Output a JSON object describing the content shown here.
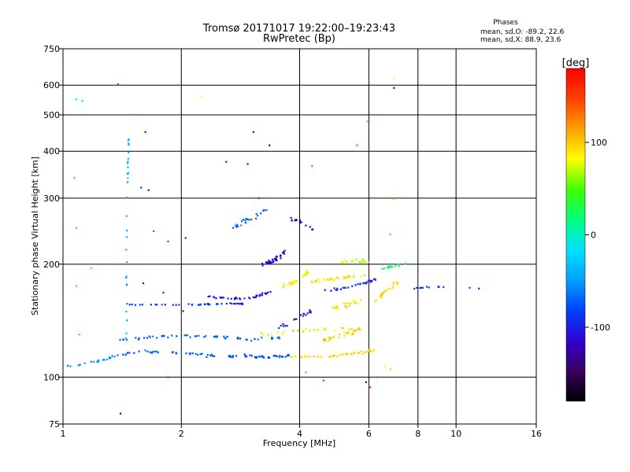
{
  "header": {
    "title_line1": "Tromsø 20171017 19:22:00–19:23:43",
    "title_line2": "RwPretec (Bp)"
  },
  "stats": {
    "heading": "Phases",
    "line_o": "mean, sd,O: -89.2, 22.6",
    "line_x": "mean, sd,X:  88.9, 23.6"
  },
  "colorbar": {
    "label": "[deg]",
    "range": [
      -180,
      180
    ],
    "ticks": [
      {
        "value": 100,
        "label": "100"
      },
      {
        "value": 0,
        "label": "0"
      },
      {
        "value": -100,
        "label": "-100"
      }
    ],
    "stops": [
      "#000000",
      "#3a0060",
      "#3000d0",
      "#0040ff",
      "#00a0ff",
      "#00e0ff",
      "#00ff80",
      "#40ff00",
      "#ffff00",
      "#ffa000",
      "#ff4000",
      "#ff0000"
    ]
  },
  "chart_data": {
    "type": "scatter",
    "title": "Tromsø 20171017 19:22:00–19:23:43",
    "subtitle": "RwPretec (Bp)",
    "xlabel": "Frequency [MHz]",
    "ylabel": "Stationary phase Virtual Height [km]",
    "xscale": "log",
    "yscale": "log",
    "xlim": [
      1,
      16
    ],
    "ylim": [
      75,
      750
    ],
    "grid": true,
    "xticks": [
      {
        "value": 1,
        "label": "1"
      },
      {
        "value": 2,
        "label": "2"
      },
      {
        "value": 4,
        "label": "4"
      },
      {
        "value": 6,
        "label": "6"
      },
      {
        "value": 8,
        "label": "8"
      },
      {
        "value": 10,
        "label": "10"
      },
      {
        "value": 16,
        "label": "16"
      }
    ],
    "yticks": [
      {
        "value": 75,
        "label": "75"
      },
      {
        "value": 100,
        "label": "100"
      },
      {
        "value": 200,
        "label": "200"
      },
      {
        "value": 300,
        "label": "300"
      },
      {
        "value": 400,
        "label": "400"
      },
      {
        "value": 500,
        "label": "500"
      },
      {
        "value": 600,
        "label": "600"
      },
      {
        "value": 750,
        "label": "750"
      }
    ],
    "grid_x": [
      1,
      2,
      4,
      6,
      8,
      10,
      16
    ],
    "grid_y": [
      100,
      200,
      300,
      400,
      500,
      600
    ],
    "traces": [
      {
        "x": [
          1.0,
          1.1,
          1.2,
          1.3,
          1.38
        ],
        "y": [
          106,
          108,
          110,
          112,
          114
        ],
        "phase": -55,
        "n": 22,
        "jx": 0.012,
        "jy": 0.012
      },
      {
        "x": [
          1.38,
          1.6,
          2.0,
          2.4,
          2.9,
          3.3,
          3.8
        ],
        "y": [
          115,
          117,
          116,
          114,
          114,
          113,
          114
        ],
        "phase": -75,
        "n": 80,
        "jx": 0.012,
        "jy": 0.012
      },
      {
        "x": [
          3.8,
          4.4,
          5.0,
          5.6,
          6.2
        ],
        "y": [
          114,
          113,
          114,
          116,
          118
        ],
        "phase": 95,
        "n": 45,
        "jx": 0.012,
        "jy": 0.012
      },
      {
        "x": [
          1.4,
          1.7,
          2.0,
          2.5,
          3.0,
          3.6
        ],
        "y": [
          126,
          128,
          129,
          128,
          126,
          128
        ],
        "phase": -70,
        "n": 60,
        "jx": 0.01,
        "jy": 0.012
      },
      {
        "x": [
          3.2,
          3.8,
          4.4,
          5.0,
          5.8
        ],
        "y": [
          130,
          132,
          134,
          135,
          134
        ],
        "phase": 70,
        "n": 30,
        "jx": 0.012,
        "jy": 0.015
      },
      {
        "x": [
          1.45,
          1.8,
          2.2,
          2.6,
          2.9
        ],
        "y": [
          156,
          156,
          156,
          157,
          157
        ],
        "phase": -90,
        "n": 45,
        "jx": 0.008,
        "jy": 0.006
      },
      {
        "x": [
          2.25,
          2.6,
          3.0,
          3.4
        ],
        "y": [
          165,
          162,
          162,
          170
        ],
        "phase": -100,
        "n": 35,
        "jx": 0.01,
        "jy": 0.01
      },
      {
        "x": [
          3.2,
          3.45,
          3.65
        ],
        "y": [
          200,
          205,
          215
        ],
        "phase": -115,
        "n": 35,
        "jx": 0.012,
        "jy": 0.02
      },
      {
        "x": [
          3.6,
          3.9,
          4.2
        ],
        "y": [
          175,
          180,
          190
        ],
        "phase": 85,
        "n": 25,
        "jx": 0.012,
        "jy": 0.025
      },
      {
        "x": [
          4.3,
          4.8,
          5.3,
          5.9
        ],
        "y": [
          180,
          182,
          185,
          188
        ],
        "phase": 90,
        "n": 35,
        "jx": 0.01,
        "jy": 0.012
      },
      {
        "x": [
          4.5,
          5.1,
          5.8,
          6.3
        ],
        "y": [
          170,
          172,
          178,
          183
        ],
        "phase": -95,
        "n": 30,
        "jx": 0.01,
        "jy": 0.01
      },
      {
        "x": [
          5.0,
          5.5,
          6.0
        ],
        "y": [
          200,
          205,
          202
        ],
        "phase": 70,
        "n": 20,
        "jx": 0.012,
        "jy": 0.015
      },
      {
        "x": [
          4.7,
          5.2,
          5.7
        ],
        "y": [
          150,
          155,
          160
        ],
        "phase": 95,
        "n": 25,
        "jx": 0.015,
        "jy": 0.02
      },
      {
        "x": [
          3.5,
          3.8,
          4.0,
          4.3
        ],
        "y": [
          135,
          140,
          145,
          150
        ],
        "phase": -100,
        "n": 20,
        "jx": 0.012,
        "jy": 0.02
      },
      {
        "x": [
          4.6,
          5.2,
          5.8
        ],
        "y": [
          125,
          130,
          135
        ],
        "phase": 100,
        "n": 30,
        "jx": 0.015,
        "jy": 0.02
      },
      {
        "x": [
          6.2,
          6.6,
          7.1
        ],
        "y": [
          160,
          170,
          180
        ],
        "phase": 95,
        "n": 20,
        "jx": 0.012,
        "jy": 0.02
      },
      {
        "x": [
          6.5,
          7.0,
          7.6
        ],
        "y": [
          195,
          198,
          202
        ],
        "phase": 20,
        "n": 15,
        "jx": 0.012,
        "jy": 0.012
      },
      {
        "x": [
          1.45,
          1.45,
          1.47
        ],
        "y": [
          130,
          250,
          450
        ],
        "phase": -40,
        "n": 30,
        "jx": 0.005,
        "jy": 0.06
      },
      {
        "x": [
          2.7,
          3.0,
          3.3
        ],
        "y": [
          250,
          265,
          280
        ],
        "phase": -70,
        "n": 22,
        "jx": 0.02,
        "jy": 0.02
      },
      {
        "x": [
          3.7,
          4.0,
          4.5
        ],
        "y": [
          270,
          260,
          245
        ],
        "phase": -120,
        "n": 14,
        "jx": 0.02,
        "jy": 0.02
      },
      {
        "x": [
          7.8,
          8.4,
          9.3,
          11.5
        ],
        "y": [
          172,
          174,
          173,
          172
        ],
        "phase": -85,
        "n": 14,
        "jx": 0.01,
        "jy": 0.008
      }
    ],
    "points": [
      {
        "x": 1.38,
        "y": 604,
        "phase": -60
      },
      {
        "x": 1.08,
        "y": 550,
        "phase": 10
      },
      {
        "x": 1.12,
        "y": 545,
        "phase": 20
      },
      {
        "x": 1.5,
        "y": 500,
        "phase": -40
      },
      {
        "x": 1.62,
        "y": 450,
        "phase": -100
      },
      {
        "x": 2.25,
        "y": 560,
        "phase": 80
      },
      {
        "x": 3.05,
        "y": 450,
        "phase": -110
      },
      {
        "x": 3.35,
        "y": 415,
        "phase": -120
      },
      {
        "x": 6.95,
        "y": 590,
        "phase": -120
      },
      {
        "x": 6.95,
        "y": 625,
        "phase": 80
      },
      {
        "x": 5.95,
        "y": 480,
        "phase": 0
      },
      {
        "x": 5.6,
        "y": 415,
        "phase": 140
      },
      {
        "x": 4.3,
        "y": 365,
        "phase": -40
      },
      {
        "x": 2.6,
        "y": 375,
        "phase": -90
      },
      {
        "x": 2.95,
        "y": 370,
        "phase": -100
      },
      {
        "x": 1.07,
        "y": 340,
        "phase": 30
      },
      {
        "x": 1.58,
        "y": 320,
        "phase": -90
      },
      {
        "x": 1.65,
        "y": 315,
        "phase": -100
      },
      {
        "x": 3.15,
        "y": 300,
        "phase": -80
      },
      {
        "x": 1.08,
        "y": 250,
        "phase": 30
      },
      {
        "x": 1.7,
        "y": 245,
        "phase": -60
      },
      {
        "x": 1.85,
        "y": 230,
        "phase": 160
      },
      {
        "x": 2.05,
        "y": 235,
        "phase": -90
      },
      {
        "x": 6.95,
        "y": 298,
        "phase": 100
      },
      {
        "x": 6.8,
        "y": 240,
        "phase": 120
      },
      {
        "x": 1.08,
        "y": 175,
        "phase": 40
      },
      {
        "x": 1.18,
        "y": 195,
        "phase": 110
      },
      {
        "x": 1.1,
        "y": 130,
        "phase": 40
      },
      {
        "x": 1.6,
        "y": 178,
        "phase": -100
      },
      {
        "x": 1.8,
        "y": 168,
        "phase": -90
      },
      {
        "x": 1.85,
        "y": 100,
        "phase": 170
      },
      {
        "x": 2.02,
        "y": 150,
        "phase": -100
      },
      {
        "x": 4.15,
        "y": 103,
        "phase": 120
      },
      {
        "x": 4.6,
        "y": 98,
        "phase": -60
      },
      {
        "x": 5.9,
        "y": 97,
        "phase": -120
      },
      {
        "x": 6.3,
        "y": 100,
        "phase": 150
      },
      {
        "x": 6.05,
        "y": 94,
        "phase": 160
      },
      {
        "x": 6.6,
        "y": 107,
        "phase": 80
      },
      {
        "x": 1.4,
        "y": 80,
        "phase": -110
      },
      {
        "x": 6.8,
        "y": 105,
        "phase": 100
      }
    ]
  }
}
